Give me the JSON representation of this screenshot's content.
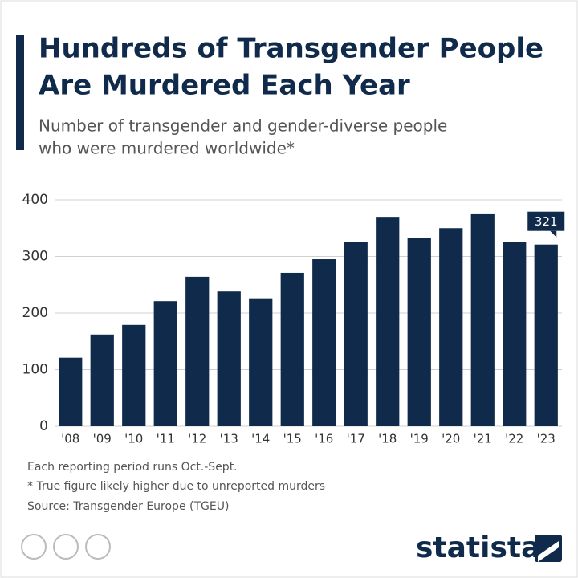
{
  "chart_data": {
    "type": "bar",
    "title": [
      "Hundreds of Transgender People",
      "Are Murdered Each Year"
    ],
    "subtitle": [
      "Number of transgender and gender-diverse people",
      "who were murdered worldwide*"
    ],
    "categories": [
      "'08",
      "'09",
      "'10",
      "'11",
      "'12",
      "'13",
      "'14",
      "'15",
      "'16",
      "'17",
      "'18",
      "'19",
      "'20",
      "'21",
      "'22",
      "'23"
    ],
    "values": [
      121,
      162,
      179,
      221,
      264,
      238,
      226,
      271,
      295,
      325,
      370,
      332,
      350,
      376,
      326,
      321
    ],
    "value_labels": [
      null,
      null,
      null,
      null,
      null,
      null,
      null,
      null,
      null,
      null,
      null,
      null,
      null,
      null,
      null,
      "321"
    ],
    "color": "#0f2a4a",
    "ylim": [
      0,
      400
    ],
    "yticks": [
      0,
      100,
      200,
      300,
      400
    ],
    "grid": true,
    "notes": [
      "Each reporting period runs Oct.-Sept.",
      "* True figure likely higher due to unreported murders",
      "Source: Transgender Europe (TGEU)"
    ],
    "brand": "statista"
  }
}
